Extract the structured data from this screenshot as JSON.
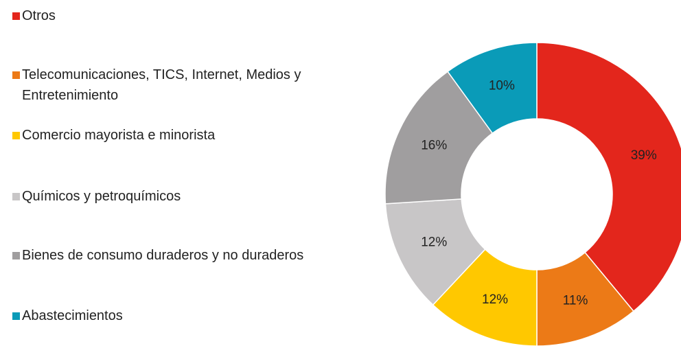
{
  "chart_data": {
    "type": "donut",
    "categories": [
      "Otros",
      "Telecomunicaciones, TICS, Internet, Medios y Entretenimiento",
      "Comercio mayorista e minorista",
      "Químicos y petroquímicos",
      "Bienes de consumo duraderos y no duraderos",
      "Abastecimientos"
    ],
    "values": [
      39,
      11,
      12,
      12,
      16,
      10
    ],
    "value_labels": [
      "39%",
      "11%",
      "12%",
      "12%",
      "16%",
      "10%"
    ],
    "colors": [
      "#e3261c",
      "#ec7a17",
      "#ffc800",
      "#c8c6c7",
      "#a09e9f",
      "#0a9bb8"
    ],
    "legend": "left"
  }
}
